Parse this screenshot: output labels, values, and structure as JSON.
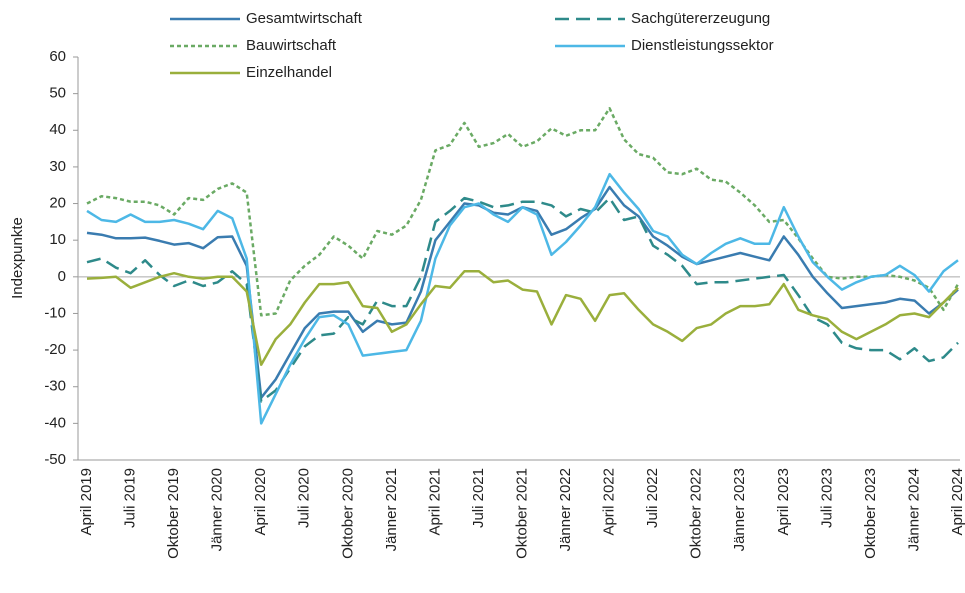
{
  "chart_data": {
    "type": "line",
    "y_axis_label": "Indexpunkte",
    "ylim": [
      -50,
      60
    ],
    "yticks": [
      -50,
      -40,
      -30,
      -20,
      -10,
      0,
      10,
      20,
      30,
      40,
      50,
      60
    ],
    "categories": [
      "April 2019",
      null,
      null,
      "Juli 2019",
      null,
      null,
      "Oktober 2019",
      null,
      null,
      "Jänner 2020",
      null,
      null,
      "April 2020",
      null,
      null,
      "Juli 2020",
      null,
      null,
      "Oktober 2020",
      null,
      null,
      "Jänner 2021",
      null,
      null,
      "April 2021",
      null,
      null,
      "Juli 2021",
      null,
      null,
      "Oktober 2021",
      null,
      null,
      "Jänner 2022",
      null,
      null,
      "April 2022",
      null,
      null,
      "Juli 2022",
      null,
      null,
      "Oktober 2022",
      null,
      null,
      "Jänner 2023",
      null,
      null,
      "April 2023",
      null,
      null,
      "Juli 2023",
      null,
      null,
      "Oktober 2023",
      null,
      null,
      "Jänner 2024",
      null,
      null,
      "April 2024"
    ],
    "series": [
      {
        "name": "Gesamtwirtschaft",
        "color": "#3a7cb0",
        "line_style": "solid",
        "values": [
          12,
          11.5,
          10.5,
          10.5,
          10.7,
          9.8,
          8.8,
          9.2,
          7.8,
          10.8,
          11,
          3,
          -33,
          -28,
          -21,
          -14,
          -10,
          -9.5,
          -9.5,
          -15,
          -12,
          -13,
          -12.5,
          -4,
          10,
          15,
          20,
          19.5,
          17.5,
          17,
          19,
          18,
          11.5,
          13,
          16,
          18.5,
          24.5,
          19.5,
          16.5,
          11,
          8.5,
          5.5,
          3.5,
          4.5,
          5.5,
          6.5,
          5.5,
          4.5,
          11,
          6,
          0,
          -4.5,
          -8.5,
          -8,
          -7.5,
          -7,
          -6,
          -6.5,
          -10,
          -7,
          -3.5
        ]
      },
      {
        "name": "Sachgütererzeugung",
        "color": "#2e8a8a",
        "line_style": "dashed",
        "values": [
          4,
          5,
          2.5,
          1,
          4.5,
          0.5,
          -2.5,
          -1,
          -2.5,
          -1.5,
          1.5,
          -2,
          -34,
          -31,
          -25,
          -19,
          -16,
          -15.5,
          -11,
          -13,
          -6.5,
          -8,
          -8,
          0,
          15,
          18,
          21.5,
          20.5,
          19,
          19.5,
          20.5,
          20.5,
          19.5,
          16.5,
          18.5,
          17.5,
          21.5,
          15.5,
          16.5,
          8.5,
          6,
          3,
          -2,
          -1.5,
          -1.5,
          -1,
          -0.5,
          0,
          0.5,
          -5,
          -11,
          -13,
          -18,
          -19.5,
          -20,
          -20,
          -22.5,
          -19.5,
          -23,
          -22,
          -18
        ]
      },
      {
        "name": "Bauwirtschaft",
        "color": "#6aaa64",
        "line_style": "dotted",
        "values": [
          20,
          22,
          21.5,
          20.5,
          20.5,
          19.5,
          17,
          21.5,
          21,
          24,
          25.5,
          23,
          -10.5,
          -10,
          -1,
          3,
          6,
          11,
          8.5,
          5,
          12.5,
          11.5,
          14,
          21,
          34.5,
          36,
          42,
          35.5,
          36.5,
          39,
          35.5,
          37,
          40.5,
          38.5,
          40,
          40,
          46,
          37.5,
          33.5,
          32.5,
          28.5,
          28,
          29.5,
          26.5,
          26,
          23,
          19.5,
          15,
          15.5,
          10.5,
          5,
          0,
          -0.5,
          0,
          0,
          0.5,
          0,
          -1,
          -3,
          -9,
          -2
        ]
      },
      {
        "name": "Dienstleistungssektor",
        "color": "#4db8e6",
        "line_style": "solid",
        "values": [
          18,
          15.5,
          15,
          17,
          15,
          15,
          15.5,
          14.5,
          13,
          18,
          16,
          5,
          -40,
          -32,
          -24,
          -17,
          -11,
          -10.5,
          -13,
          -21.5,
          -21,
          -20.5,
          -20,
          -12,
          5,
          14,
          19,
          20,
          17,
          15,
          19,
          17,
          6,
          9.5,
          14,
          19,
          28,
          23,
          18.5,
          12.5,
          11,
          6,
          3.5,
          6.5,
          9,
          10.5,
          9,
          9,
          19,
          11,
          4,
          0,
          -3.5,
          -1.5,
          0,
          0.5,
          3,
          0.5,
          -4,
          1.5,
          4.5
        ]
      },
      {
        "name": "Einzelhandel",
        "color": "#9aaf3c",
        "line_style": "solid",
        "values": [
          -0.5,
          -0.3,
          0,
          -3,
          -1.5,
          0,
          1,
          0,
          -0.5,
          0,
          0,
          -4,
          -24,
          -17,
          -13,
          -7,
          -2,
          -2,
          -1.5,
          -8,
          -8.5,
          -15,
          -13,
          -7.5,
          -2.5,
          -3,
          1.5,
          1.5,
          -1.5,
          -1,
          -3.5,
          -4,
          -13,
          -5,
          -6,
          -12,
          -5,
          -4.5,
          -9,
          -13,
          -15,
          -17.5,
          -14,
          -13,
          -10,
          -8,
          -8,
          -7.5,
          -2,
          -9,
          -10.5,
          -11.5,
          -15,
          -17,
          -15,
          -13,
          -10.5,
          -10,
          -11,
          -7,
          -3
        ]
      }
    ]
  }
}
